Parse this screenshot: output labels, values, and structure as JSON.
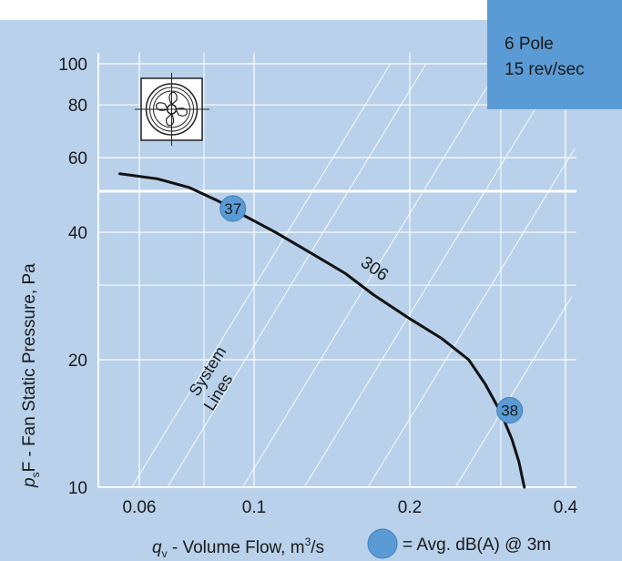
{
  "colors": {
    "background": "#b9d1ea",
    "grid": "#ffffff",
    "curve": "#111111",
    "marker": "#5b9bd5",
    "info_box": "#5b9bd5"
  },
  "info_box": {
    "line1": "6 Pole",
    "line2": "15 rev/sec"
  },
  "legend": {
    "text": "= Avg. dB(A) @ 3m"
  },
  "chart_data": {
    "type": "line",
    "xscale": "log",
    "yscale": "log",
    "xlim": [
      0.05,
      0.42
    ],
    "ylim": [
      10,
      100
    ],
    "x_ticks": [
      0.06,
      0.1,
      0.2,
      0.4
    ],
    "x_tick_labels": [
      "0.06",
      "0.1",
      "0.2",
      "0.4"
    ],
    "y_ticks": [
      10,
      20,
      40,
      60,
      80,
      100
    ],
    "y_tick_labels": [
      "10",
      "20",
      "40",
      "60",
      "80",
      "100"
    ],
    "xlabel": {
      "var": "q",
      "sub": "v",
      "text": " - Volume Flow, m",
      "sup": "3",
      "unit": "/s"
    },
    "ylabel": {
      "var": "p",
      "sub": "s",
      "text": "F - Fan Static Pressure, Pa"
    },
    "grid": true,
    "series": [
      {
        "name": "306",
        "x": [
          0.055,
          0.065,
          0.075,
          0.085,
          0.095,
          0.11,
          0.13,
          0.15,
          0.17,
          0.2,
          0.23,
          0.26,
          0.28,
          0.3,
          0.315,
          0.325,
          0.333
        ],
        "y": [
          55,
          53.5,
          51,
          47.5,
          44,
          40,
          35.5,
          32,
          28.5,
          25,
          22.5,
          20,
          17.5,
          15,
          13,
          11.5,
          10
        ]
      }
    ],
    "markers": [
      {
        "x": 0.091,
        "y": 45.5,
        "label": "37"
      },
      {
        "x": 0.312,
        "y": 15.2,
        "label": "38"
      }
    ],
    "annotations": [
      {
        "text": "306",
        "x": 0.16,
        "y": 33.5
      },
      {
        "text": "System",
        "x": 0.083,
        "y": 18.5
      },
      {
        "text": "Lines",
        "x": 0.087,
        "y": 16.5
      }
    ],
    "system_lines_x_at_ymin": [
      0.058,
      0.068,
      0.095,
      0.125,
      0.166,
      0.245
    ]
  }
}
